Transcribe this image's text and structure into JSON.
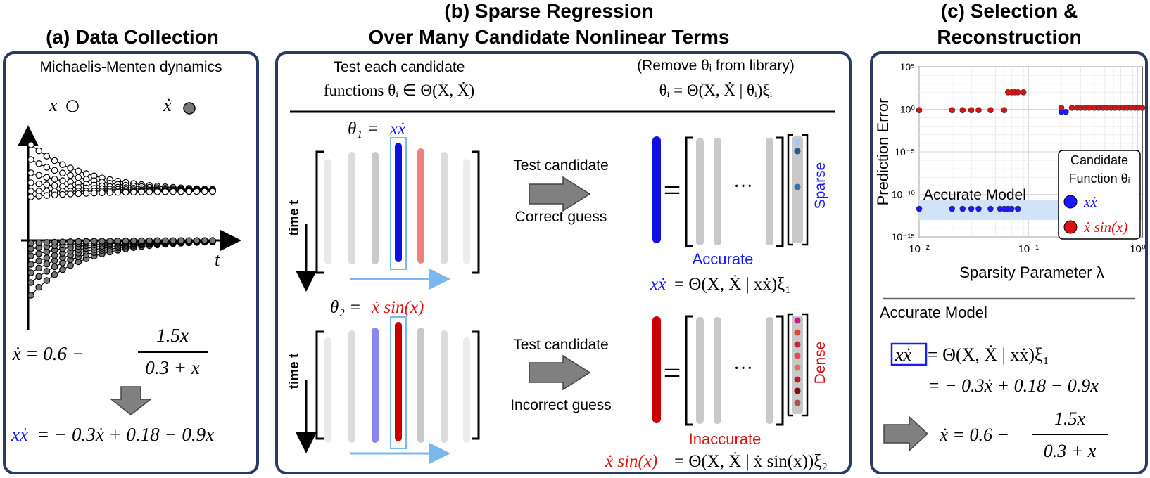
{
  "panel_a": {
    "title": "(a) Data Collection",
    "subtitle": "Michaelis-Menten dynamics",
    "legend_x": "x",
    "legend_xdot": "ẋ",
    "axis_t": "t",
    "eq_lhs": "ẋ = 0.6 −",
    "eq_num": "1.5x",
    "eq_den": "0.3 + x",
    "result_lhs": "xẋ",
    "result_rhs": "= − 0.3ẋ + 0.18 − 0.9x"
  },
  "panel_b": {
    "title_line1": "(b) Sparse Regression",
    "title_line2": "Over Many Candidate Nonlinear Terms",
    "header_left_1": "Test each candidate",
    "header_left_2": "functions θᵢ ∈ Θ(X, Ẋ)",
    "header_right_1": "(Remove θᵢ from library)",
    "header_right_2": "θᵢ = Θ(X, Ẋ | θᵢ)ξᵢ",
    "row1": {
      "theta_label": "θ₁ =",
      "theta_fn": "xẋ",
      "time_label": "time t",
      "arrow_top": "Test candidate",
      "arrow_bottom": "Correct guess",
      "equals": "=",
      "dots": "···",
      "vector_label": "Sparse",
      "verdict": "Accurate",
      "eq_lhs": "xẋ",
      "eq_rhs": "= Θ(X, Ẋ | xẋ)ξ₁"
    },
    "row2": {
      "theta_label": "θ₂ =",
      "theta_fn": "ẋ sin(x)",
      "time_label": "time t",
      "arrow_top": "Test candidate",
      "arrow_bottom": "Incorrect guess",
      "equals": "=",
      "dots": "···",
      "vector_label": "Dense",
      "verdict": "Inaccurate",
      "eq_lhs": "ẋ sin(x)",
      "eq_rhs": "= Θ(X, Ẋ | ẋ sin(x))ξ₂"
    }
  },
  "panel_c": {
    "title_line1": "(c) Selection &",
    "title_line2": "Reconstruction",
    "band_label": "Accurate Model",
    "legend_title_1": "Candidate",
    "legend_title_2": "Function θᵢ",
    "model_heading": "Accurate Model",
    "model_lhs": "xẋ",
    "model_line1": "= Θ(X, Ẋ | xẋ)ξ₁",
    "model_line2": "= − 0.3ẋ + 0.18 − 0.9x",
    "final_lhs": "ẋ = 0.6 −",
    "final_num": "1.5x",
    "final_den": "0.3 + x"
  },
  "chart_data": {
    "type": "scatter",
    "xlabel": "Sparsity Parameter λ",
    "ylabel": "Prediction Error",
    "xscale": "log",
    "yscale": "log",
    "xlim": [
      0.01,
      1.1
    ],
    "ylim": [
      1e-15,
      100000.0
    ],
    "x_ticks": [
      "10⁻²",
      "10⁻¹",
      "10⁰"
    ],
    "y_ticks": [
      "10⁵",
      "10⁰",
      "10⁻⁵",
      "10⁻¹⁰",
      "10⁻¹⁵"
    ],
    "grid": true,
    "legend_position": "right",
    "series": [
      {
        "name": "xẋ",
        "color": "#1a1aff",
        "points": [
          [
            0.01,
            2e-12
          ],
          [
            0.02,
            2e-12
          ],
          [
            0.025,
            2e-12
          ],
          [
            0.03,
            2e-12
          ],
          [
            0.035,
            2e-12
          ],
          [
            0.045,
            2e-12
          ],
          [
            0.055,
            2e-12
          ],
          [
            0.06,
            2e-12
          ],
          [
            0.065,
            2e-12
          ],
          [
            0.07,
            2e-12
          ],
          [
            0.08,
            2e-12
          ],
          [
            0.2,
            0.5
          ],
          [
            0.22,
            0.5
          ]
        ]
      },
      {
        "name": "ẋ sin(x)",
        "color": "#dd1111",
        "points": [
          [
            0.01,
            0.8
          ],
          [
            0.02,
            0.8
          ],
          [
            0.025,
            0.8
          ],
          [
            0.03,
            0.8
          ],
          [
            0.035,
            0.8
          ],
          [
            0.045,
            0.8
          ],
          [
            0.06,
            0.8
          ],
          [
            0.065,
            100
          ],
          [
            0.07,
            100
          ],
          [
            0.075,
            100
          ],
          [
            0.08,
            100
          ],
          [
            0.09,
            100
          ],
          [
            0.2,
            1.5
          ],
          [
            0.25,
            1.5
          ],
          [
            0.28,
            1.5
          ],
          [
            0.3,
            1.5
          ],
          [
            0.33,
            1.5
          ],
          [
            0.36,
            1.5
          ],
          [
            0.4,
            1.5
          ],
          [
            0.44,
            1.5
          ],
          [
            0.48,
            1.5
          ],
          [
            0.52,
            1.5
          ],
          [
            0.57,
            1.5
          ],
          [
            0.62,
            1.5
          ],
          [
            0.68,
            1.5
          ],
          [
            0.74,
            1.5
          ],
          [
            0.8,
            1.5
          ],
          [
            0.87,
            1.5
          ],
          [
            0.94,
            1.5
          ],
          [
            1.02,
            1.5
          ],
          [
            1.1,
            1.5
          ]
        ]
      }
    ],
    "annotations": [
      "Accurate Model"
    ]
  }
}
